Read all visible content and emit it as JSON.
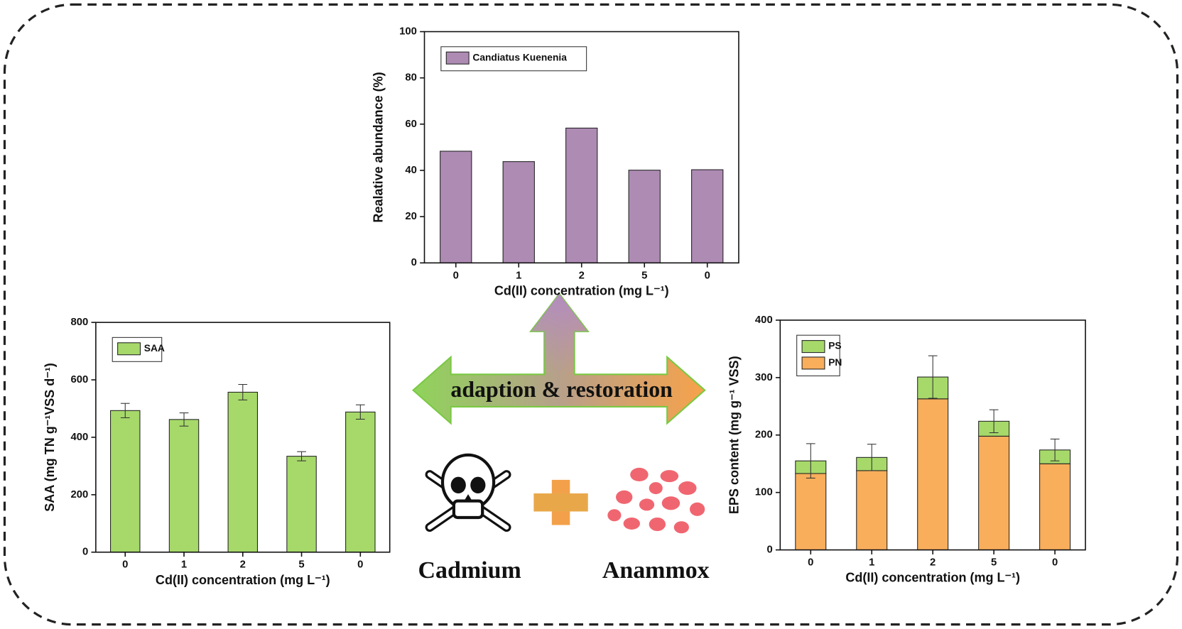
{
  "chart_data": [
    {
      "type": "bar",
      "ylabel": "Realative abundance (%)",
      "xlabel": "Cd(II) concentration (mg L⁻¹)",
      "categories": [
        "0",
        "1",
        "2",
        "5",
        "0"
      ],
      "series": [
        {
          "name": "Candiatus Kuenenia",
          "color": "#ad8bb3",
          "values": [
            48.3,
            43.8,
            58.3,
            40.1,
            40.3
          ]
        }
      ],
      "ylim": [
        0,
        100
      ],
      "yticks": [
        0,
        20,
        40,
        60,
        80,
        100
      ],
      "legend": "upper left"
    },
    {
      "type": "bar",
      "ylabel": "SAA (mg TN g⁻¹VSS d⁻¹)",
      "xlabel": "Cd(II) concentration (mg L⁻¹)",
      "categories": [
        "0",
        "1",
        "2",
        "5",
        "0"
      ],
      "series": [
        {
          "name": "SAA",
          "color": "#a6d96a",
          "values": [
            493,
            462,
            557,
            334,
            488
          ],
          "errors": [
            25,
            23,
            27,
            16,
            25
          ]
        }
      ],
      "ylim": [
        0,
        800
      ],
      "yticks": [
        0,
        200,
        400,
        600,
        800
      ],
      "legend": "upper left"
    },
    {
      "type": "stacked-bar",
      "ylabel": "EPS content (mg g⁻¹ VSS)",
      "xlabel": "Cd(II) concentration (mg L⁻¹)",
      "categories": [
        "0",
        "1",
        "2",
        "5",
        "0"
      ],
      "series": [
        {
          "name": "PN",
          "color": "#f8ae5b",
          "values": [
            133,
            138,
            263,
            198,
            150
          ]
        },
        {
          "name": "PS",
          "color": "#a6d96a",
          "values": [
            22,
            23,
            38,
            26,
            24
          ],
          "errors": [
            30,
            23,
            37,
            20,
            19
          ]
        }
      ],
      "ylim": [
        0,
        400
      ],
      "yticks": [
        0,
        100,
        200,
        300,
        400
      ],
      "legend": "upper left"
    }
  ],
  "arrow_label": "adaption & restoration",
  "left_label": "Cadmium",
  "right_label": "Anammox"
}
